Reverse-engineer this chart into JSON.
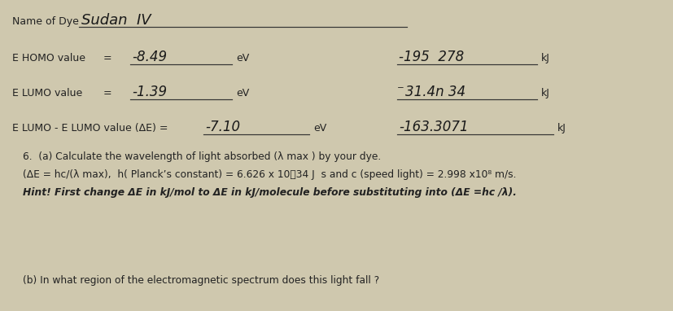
{
  "bg_color": "#cfc8ae",
  "title_label": "Name of Dye",
  "dye_name": "Sudan  IV",
  "homo_label": "E HOMO value",
  "homo_eq": "=",
  "homo_ev": "-8.49",
  "homo_ev_unit": "eV",
  "homo_kj": "-195  278",
  "homo_kj_unit": "kJ",
  "lumo_label": "E LUMO value",
  "lumo_eq": "=",
  "lumo_ev": "-1.39",
  "lumo_ev_unit": "eV",
  "lumo_kj": "‱31.4n 34",
  "lumo_kj_unit": "kJ",
  "delta_label": "E LUMO - E LUMO value (ΔE) =",
  "delta_ev": "-7.10",
  "delta_ev_unit": "eV",
  "delta_kj": "-163.3071",
  "delta_kj_unit": "kJ",
  "q6a_line1": "6.  (a) Calculate the wavelength of light absorbed (λ max ) by your dye.",
  "q6a_line2": "(ΔE = hc/(λ max),  h( Planck’s constant) = 6.626 x 10⁳34 J  s and c (speed light) = 2.998 x10⁸ m/s.",
  "q6a_hint": "Hint! First change ΔE in kJ/mol to ΔE in kJ/molecule before substituting into (ΔE =hc /λ).",
  "q6b": "(b) In what region of the electromagnetic spectrum does this light fall ?",
  "text_color": "#222222",
  "handwriting_color": "#1a1a1a",
  "line_color": "#333333"
}
